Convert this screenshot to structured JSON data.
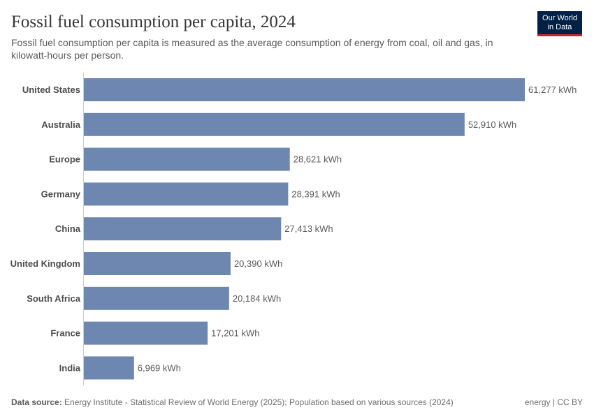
{
  "header": {
    "title": "Fossil fuel consumption per capita, 2024",
    "subtitle": "Fossil fuel consumption per capita is measured as the average consumption of energy from coal, oil and gas, in kilowatt-hours per person."
  },
  "logo": {
    "line1": "Our World",
    "line2": "in Data"
  },
  "footer": {
    "source_label": "Data source:",
    "source_text": "Energy Institute - Statistical Review of World Energy (2025); Population based on various sources (2024)",
    "license": "energy | CC BY"
  },
  "colors": {
    "bar": "#6d87b0",
    "axis": "#cccccc",
    "label": "#4d4d4d",
    "value": "#5b5b5b"
  },
  "chart_data": {
    "type": "bar",
    "orientation": "horizontal",
    "title": "Fossil fuel consumption per capita, 2024",
    "unit": "kWh",
    "categories": [
      "United States",
      "Australia",
      "Europe",
      "Germany",
      "China",
      "United Kingdom",
      "South Africa",
      "France",
      "India"
    ],
    "values": [
      61277,
      52910,
      28621,
      28391,
      27413,
      20390,
      20184,
      17201,
      6969
    ],
    "value_labels": [
      "61,277 kWh",
      "52,910 kWh",
      "28,621 kWh",
      "28,391 kWh",
      "27,413 kWh",
      "20,390 kWh",
      "20,184 kWh",
      "17,201 kWh",
      "6,969 kWh"
    ],
    "xlim": [
      0,
      61277
    ]
  }
}
